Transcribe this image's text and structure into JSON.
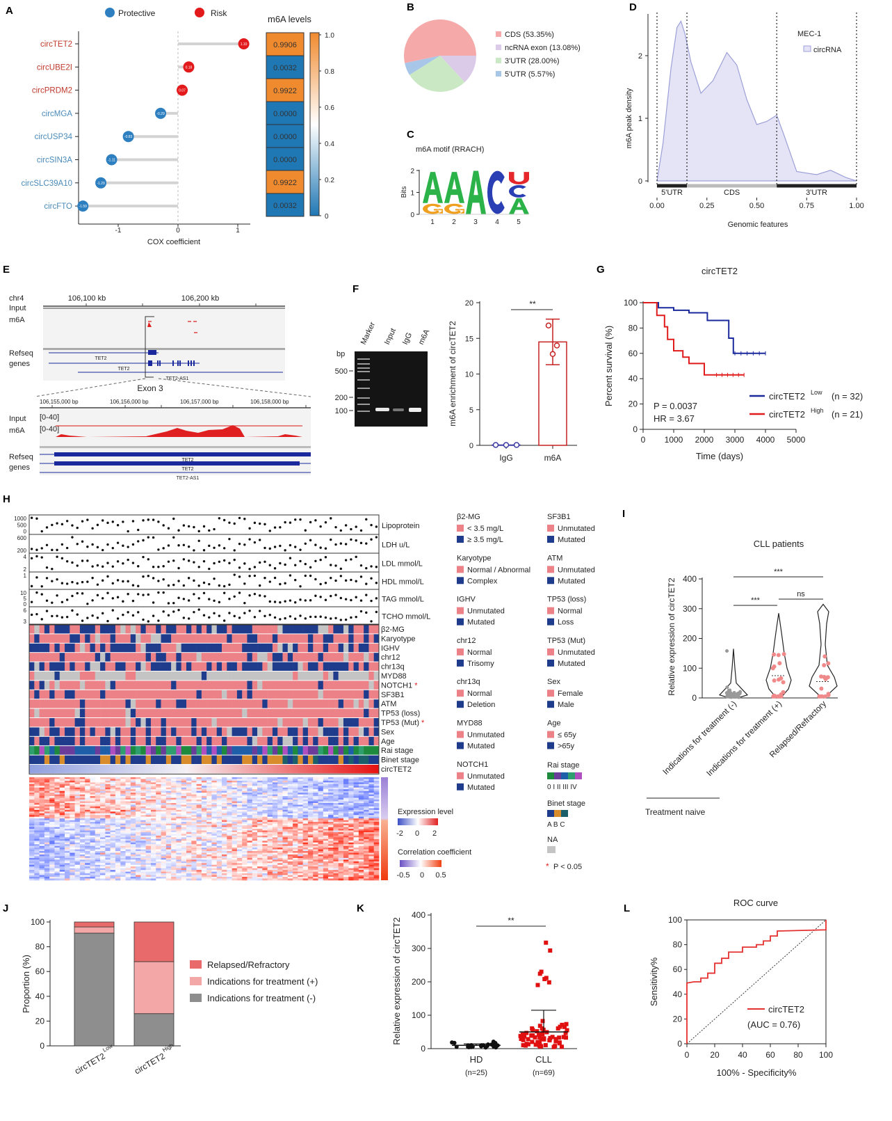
{
  "chart_data": [
    {
      "panel": "A",
      "type": "lollipop+heatmap",
      "legend": [
        "Protective",
        "Risk"
      ],
      "genes": [
        "circTET2",
        "circUBE2I",
        "circPRDM2",
        "circMGA",
        "circUSP34",
        "circSIN3A",
        "circSLC39A10",
        "circFTO"
      ],
      "cox": [
        "1.10",
        "0.18",
        "0.07",
        "-0.29",
        "-0.83",
        "-1.11",
        "-1.29",
        "-1.59"
      ],
      "xticks": [
        "-1",
        "0",
        "1"
      ],
      "xticks_values": [
        -1,
        0,
        1
      ],
      "xlabel": "COX coefficient",
      "heatmap_title": "m6A levels",
      "m6a_levels": [
        "0.9906",
        "0.0032",
        "0.9922",
        "0.0000",
        "0.0000",
        "0.0000",
        "0.9922",
        "0.0032"
      ],
      "colorbar_ticks": [
        "1.0",
        "0.8",
        "0.6",
        "0.4",
        "0.2",
        "0"
      ],
      "colors": {
        "protective": "#2e7fc0",
        "risk": "#e31a1c",
        "high": "#f08a2e",
        "low": "#1f77b4"
      }
    },
    {
      "panel": "B",
      "type": "pie",
      "labels": [
        "CDS (53.35%)",
        "ncRNA exon (13.08%)",
        "3'UTR (28.00%)",
        "5'UTR (5.57%)"
      ],
      "values": [
        53.35,
        13.08,
        28.0,
        5.57
      ],
      "colors": [
        "#f5a9a9",
        "#dccbe8",
        "#cbe8c4",
        "#a8c6e8"
      ]
    },
    {
      "panel": "C",
      "type": "sequence-logo",
      "title": "m6A motif  (RRACH)",
      "ylabel": "Bits",
      "yticks": [
        "0",
        "1",
        "2"
      ],
      "positions": [
        "1",
        "2",
        "3",
        "4",
        "5"
      ],
      "letters": [
        [
          {
            "l": "A",
            "bits": 1.45
          },
          {
            "l": "G",
            "bits": 0.5
          }
        ],
        [
          {
            "l": "A",
            "bits": 1.45
          },
          {
            "l": "G",
            "bits": 0.5
          }
        ],
        [
          {
            "l": "A",
            "bits": 2.0
          }
        ],
        [
          {
            "l": "C",
            "bits": 2.0
          }
        ],
        [
          {
            "l": "U",
            "bits": 0.6
          },
          {
            "l": "C",
            "bits": 0.6
          },
          {
            "l": "A",
            "bits": 0.75
          }
        ]
      ],
      "letter_colors": {
        "A": "#2bb34a",
        "G": "#f0a020",
        "C": "#2b3fb5",
        "U": "#e5262a"
      }
    },
    {
      "panel": "D",
      "type": "area",
      "legend_title": "MEC-1",
      "series_name": "circRNA",
      "xlabel": "Genomic features",
      "ylabel": "m6A peak density",
      "xticks": [
        "0.00",
        "0.25",
        "0.50",
        "0.75",
        "1.00"
      ],
      "xticks_values": [
        0,
        0.25,
        0.5,
        0.75,
        1
      ],
      "yticks": [
        "0",
        "1",
        "2"
      ],
      "yticks_values": [
        0,
        1,
        2
      ],
      "regions": [
        "5'UTR",
        "CDS",
        "3'UTR"
      ],
      "region_bounds": [
        0,
        0.15,
        0.6,
        1
      ],
      "x": [
        0,
        0.03,
        0.07,
        0.1,
        0.12,
        0.14,
        0.17,
        0.22,
        0.28,
        0.35,
        0.4,
        0.45,
        0.5,
        0.55,
        0.6,
        0.64,
        0.7,
        0.8,
        0.87,
        0.95,
        1
      ],
      "y": [
        0,
        0.6,
        1.8,
        2.45,
        2.55,
        2.35,
        1.9,
        1.4,
        1.6,
        2.05,
        1.85,
        1.3,
        0.9,
        0.95,
        1.05,
        0.7,
        0.15,
        0.1,
        0.17,
        0.05,
        0
      ]
    },
    {
      "panel": "E",
      "type": "genome-browser",
      "chrom": "chr4",
      "coords_top": [
        "106,100 kb",
        "106,200 kb"
      ],
      "track_input": "Input",
      "track_m6a": "m6A",
      "track_refseq": "Refseq",
      "track_genes": "genes",
      "genes": [
        "TET2",
        "TET2",
        "TET2-AS1"
      ],
      "zoom_label": "Exon 3",
      "coords_zoom": [
        "106,155,000 bp",
        "106,156,000 bp",
        "106,157,000 bp",
        "106,158,000 bp"
      ],
      "range": "[0-40]"
    },
    {
      "panel": "F",
      "type": "bar",
      "gel_lanes": [
        "Marker",
        "Input",
        "IgG",
        "m6A"
      ],
      "gel_unit": "bp",
      "gel_markers": [
        "500",
        "200",
        "100"
      ],
      "categories": [
        "IgG",
        "m6A"
      ],
      "means": [
        0.05,
        14.5
      ],
      "sd": [
        0.02,
        3.2
      ],
      "points": [
        [
          0.05,
          0.05,
          0.05
        ],
        [
          16.8,
          12.8,
          14.0
        ]
      ],
      "ylabel": "m6A enrichment of circTET2",
      "yticks": [
        "0",
        "5",
        "10",
        "15",
        "20"
      ],
      "ylim": [
        0,
        20
      ],
      "significance": "**"
    },
    {
      "panel": "G",
      "type": "line",
      "title": "circTET2",
      "xlabel": "Time (days)",
      "ylabel": "Percent survival (%)",
      "xticks": [
        "0",
        "1000",
        "2000",
        "3000",
        "4000",
        "5000"
      ],
      "yticks": [
        "0",
        "20",
        "40",
        "60",
        "80",
        "100"
      ],
      "xlim": [
        0,
        5000
      ],
      "ylim": [
        0,
        100
      ],
      "p_value": "P = 0.0037",
      "hr": "HR = 3.67",
      "series": [
        {
          "name": "circTET2",
          "sup": "Low",
          "n": "(n = 32)",
          "color": "#1a2a9c",
          "x": [
            0,
            500,
            500,
            1000,
            1000,
            1500,
            1500,
            2100,
            2100,
            2800,
            2800,
            2950,
            2950,
            4000
          ],
          "y": [
            100,
            100,
            96,
            96,
            94,
            94,
            92,
            92,
            86,
            86,
            72,
            72,
            60,
            60
          ]
        },
        {
          "name": "circTET2",
          "sup": "High",
          "n": "(n = 21)",
          "color": "#e01b1b",
          "x": [
            0,
            450,
            450,
            700,
            700,
            800,
            800,
            1000,
            1000,
            1300,
            1300,
            1500,
            1500,
            2000,
            2000,
            3300
          ],
          "y": [
            100,
            100,
            90,
            90,
            81,
            81,
            71,
            71,
            62,
            62,
            57,
            57,
            52,
            52,
            43,
            43
          ]
        }
      ]
    },
    {
      "panel": "H",
      "type": "heatmap",
      "lipid_tracks": [
        "Lipoprotein",
        "LDH u/L",
        "LDL mmol/L",
        "HDL mmol/L",
        "TAG mmol/L",
        "TCHO mmol/L"
      ],
      "lipid_ticks": [
        [
          "1000",
          "500",
          "0"
        ],
        [
          "600",
          "200"
        ],
        [
          "4",
          "2"
        ],
        [
          "1"
        ],
        [
          "10",
          "5",
          "0"
        ],
        [
          "6",
          "3"
        ]
      ],
      "annotation_rows": [
        "β2-MG",
        "Karyotype",
        "IGHV",
        "chr12",
        "chr13q",
        "MYD88",
        "NOTCH1",
        "SF3B1",
        "ATM",
        "TP53 (loss)",
        "TP53 (Mut)",
        "Sex",
        "Age",
        "Rai stage",
        "Binet stage",
        "circTET2"
      ],
      "significant_rows": [
        "NOTCH1",
        "TP53 (Mut)"
      ],
      "n_patients": 69,
      "legend_col1": [
        {
          "title": "β2-MG",
          "items": [
            "< 3.5 mg/L",
            "≥ 3.5 mg/L"
          ]
        },
        {
          "title": "Karyotype",
          "items": [
            "Normal / Abnormal",
            "Complex"
          ]
        },
        {
          "title": "IGHV",
          "items": [
            "Unmutated",
            "Mutated"
          ]
        },
        {
          "title": "chr12",
          "items": [
            "Normal",
            "Trisomy"
          ]
        },
        {
          "title": "chr13q",
          "items": [
            "Normal",
            "Deletion"
          ]
        },
        {
          "title": "MYD88",
          "items": [
            "Unmutated",
            "Mutated"
          ]
        },
        {
          "title": "NOTCH1",
          "items": [
            "Unmutated",
            "Mutated"
          ]
        }
      ],
      "legend_col2": [
        {
          "title": "SF3B1",
          "items": [
            "Unmutated",
            "Mutated"
          ]
        },
        {
          "title": "ATM",
          "items": [
            "Unmutated",
            "Mutated"
          ]
        },
        {
          "title": "TP53 (loss)",
          "items": [
            "Normal",
            "Loss"
          ]
        },
        {
          "title": "TP53 (Mut)",
          "items": [
            "Unmutated",
            "Mutated"
          ]
        },
        {
          "title": "Sex",
          "items": [
            "Female",
            "Male"
          ]
        },
        {
          "title": "Age",
          "items": [
            "≤ 65y",
            ">65y"
          ]
        }
      ],
      "rai_title": "Rai stage",
      "rai_labels": "0  I  II III IV",
      "binet_title": "Binet stage",
      "binet_labels": "A B C",
      "na_label": "NA",
      "p_note": "P < 0.05",
      "star": "*",
      "expr_title": "Expression level",
      "expr_ticks": [
        "-2",
        "0",
        "2"
      ],
      "corr_title": "Correlation coefficient",
      "corr_ticks": [
        "-0.5",
        "0",
        "0.5"
      ],
      "colors": {
        "pos": "#ec8288",
        "neg": "#1f3b8c",
        "na": "#c4c4c4",
        "rai": [
          "#1e8a3e",
          "#6a3d9a",
          "#1f5ea8",
          "#2f9f6f",
          "#b04fc0"
        ],
        "binet": [
          "#1f3b8c",
          "#d98c2b",
          "#1b5f6a"
        ]
      }
    },
    {
      "panel": "I",
      "type": "violin",
      "title": "CLL patients",
      "ylabel": "Relative expression of circTET2",
      "categories": [
        "Indications for treatment (-)",
        "Indications for treatment (+)",
        "Relapsed/Refractory"
      ],
      "group_label": "Treatment naive",
      "yticks": [
        "0",
        "100",
        "200",
        "300",
        "400"
      ],
      "ylim": [
        0,
        400
      ],
      "medians": [
        15,
        75,
        55
      ],
      "max": [
        165,
        285,
        315
      ],
      "significance": [
        {
          "pair": "1-3",
          "label": "***"
        },
        {
          "pair": "1-2",
          "label": "***"
        },
        {
          "pair": "2-3",
          "label": "ns"
        }
      ]
    },
    {
      "panel": "J",
      "type": "bar",
      "stacked": true,
      "ylabel": "Proportion (%)",
      "categories": [
        "circTET2",
        "circTET2"
      ],
      "category_sup": [
        "Low",
        "High"
      ],
      "yticks": [
        "0",
        "20",
        "40",
        "60",
        "80",
        "100"
      ],
      "ylim": [
        0,
        100
      ],
      "series": [
        {
          "name": "Indications for treatment (-)",
          "values": [
            91,
            26
          ],
          "color": "#8e8e8e"
        },
        {
          "name": "Indications for treatment (+)",
          "values": [
            5,
            42
          ],
          "color": "#f4a7a7"
        },
        {
          "name": "Relapsed/Refractory",
          "values": [
            4,
            32
          ],
          "color": "#e86a6a"
        }
      ]
    },
    {
      "panel": "K",
      "type": "scatter",
      "ylabel": "Relative expression of circTET2",
      "categories": [
        "HD",
        "CLL"
      ],
      "n": [
        "(n=25)",
        "(n=69)"
      ],
      "means": [
        10,
        50
      ],
      "sd_upper": [
        14,
        115
      ],
      "yticks": [
        "0",
        "100",
        "200",
        "300",
        "400"
      ],
      "ylim": [
        0,
        400
      ],
      "significance": "**"
    },
    {
      "panel": "L",
      "type": "line",
      "title": "ROC curve",
      "xlabel": "100% - Specificity%",
      "ylabel": "Sensitivity%",
      "ticks": [
        "0",
        "20",
        "40",
        "60",
        "80",
        "100"
      ],
      "series_name": "circTET2",
      "auc": "(AUC = 0.76)",
      "x": [
        0,
        0,
        5,
        10,
        10,
        15,
        15,
        20,
        20,
        25,
        25,
        30,
        30,
        40,
        40,
        50,
        50,
        55,
        55,
        60,
        60,
        65,
        65,
        100,
        100
      ],
      "y": [
        0,
        49,
        50,
        50,
        53,
        53,
        57,
        57,
        65,
        65,
        69,
        69,
        74,
        74,
        78,
        78,
        80,
        80,
        83,
        83,
        87,
        87,
        91,
        92,
        100
      ]
    }
  ]
}
